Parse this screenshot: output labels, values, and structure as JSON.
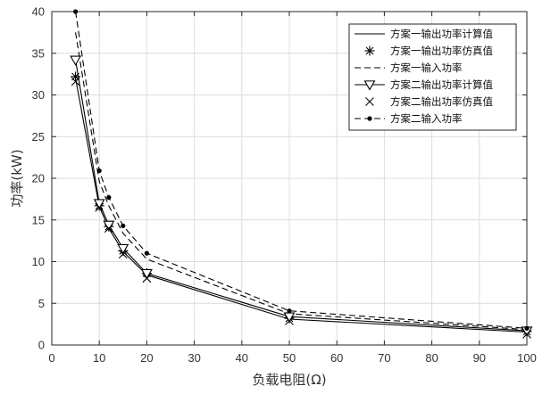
{
  "chart_data": {
    "type": "line",
    "xlabel": "负载电阻(Ω)",
    "ylabel": "功率(kW)",
    "xlim": [
      0,
      100
    ],
    "ylim": [
      0,
      40
    ],
    "xticks": [
      0,
      10,
      20,
      30,
      40,
      50,
      60,
      70,
      80,
      90,
      100
    ],
    "yticks": [
      0,
      5,
      10,
      15,
      20,
      25,
      30,
      35,
      40
    ],
    "grid": true,
    "legend_position": "top-right",
    "series": [
      {
        "name": "方案一输出功率计算值",
        "style": "solid",
        "marker": "none",
        "color": "#000000",
        "x": [
          5,
          10,
          12,
          15,
          20,
          50,
          100
        ],
        "y": [
          32.0,
          16.6,
          14.0,
          11.2,
          8.4,
          3.1,
          1.55
        ]
      },
      {
        "name": "方案一输出功率仿真值",
        "style": "none",
        "marker": "asterisk",
        "color": "#000000",
        "x": [
          5,
          10,
          12,
          15,
          20,
          50,
          100
        ],
        "y": [
          32.2,
          16.7,
          14.2,
          11.3,
          8.6,
          3.2,
          1.6
        ]
      },
      {
        "name": "方案一输入功率",
        "style": "dashed",
        "marker": "none",
        "color": "#000000",
        "x": [
          5,
          10,
          12,
          15,
          20,
          50,
          100
        ],
        "y": [
          37.5,
          19.6,
          16.7,
          13.4,
          10.3,
          3.75,
          1.85
        ]
      },
      {
        "name": "方案二输出功率计算值",
        "style": "solid",
        "marker": "triangle-down",
        "color": "#000000",
        "x": [
          5,
          10,
          12,
          15,
          20,
          50,
          100
        ],
        "y": [
          34.2,
          17.0,
          14.4,
          11.6,
          8.6,
          3.4,
          1.7
        ]
      },
      {
        "name": "方案二输出功率仿真值",
        "style": "none",
        "marker": "x",
        "color": "#000000",
        "x": [
          5,
          10,
          12,
          15,
          20,
          50,
          100
        ],
        "y": [
          31.6,
          16.5,
          14.0,
          10.9,
          8.0,
          2.9,
          1.3
        ]
      },
      {
        "name": "方案二输入功率",
        "style": "dashed",
        "marker": "dot",
        "color": "#000000",
        "x": [
          5,
          10,
          12,
          15,
          20,
          50,
          100
        ],
        "y": [
          40.0,
          20.9,
          17.7,
          14.3,
          11.0,
          4.1,
          2.0
        ]
      }
    ]
  }
}
